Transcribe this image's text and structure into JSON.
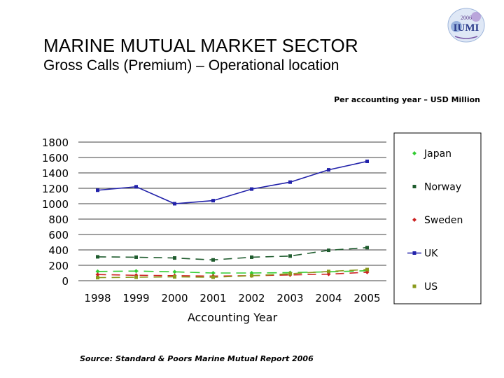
{
  "slide": {
    "title": "MARINE MUTUAL MARKET SECTOR",
    "subtitle": "Gross Calls (Premium) – Operational location",
    "note": "Per accounting year – USD Million",
    "source": "Source: Standard & Poors Marine Mutual Report 2006"
  },
  "logo": {
    "year": "2006",
    "text": "IUMI"
  },
  "chart_data": {
    "type": "line",
    "title": "",
    "xlabel": "Accounting Year",
    "ylabel": "",
    "ylim": [
      0,
      1800
    ],
    "yticks": [
      "0",
      "200",
      "400",
      "600",
      "800",
      "1000",
      "1200",
      "1400",
      "1600",
      "1800"
    ],
    "categories": [
      "1998",
      "1999",
      "2000",
      "2001",
      "2002",
      "2003",
      "2004",
      "2005"
    ],
    "grid": true,
    "legend": "right",
    "series": [
      {
        "name": "Japan",
        "color": "#33cc33",
        "dash": "14,8",
        "marker": "diamond",
        "values": [
          120,
          125,
          115,
          100,
          100,
          105,
          115,
          130
        ]
      },
      {
        "name": "Norway",
        "color": "#1f5c2e",
        "dash": "12,8",
        "marker": "square",
        "values": [
          310,
          305,
          295,
          270,
          305,
          320,
          395,
          430
        ]
      },
      {
        "name": "Sweden",
        "color": "#cc2222",
        "dash": "12,8",
        "marker": "diamond",
        "values": [
          80,
          70,
          65,
          60,
          65,
          75,
          85,
          110
        ]
      },
      {
        "name": "UK",
        "color": "#2222aa",
        "dash": "none",
        "marker": "square",
        "values": [
          1175,
          1220,
          1000,
          1040,
          1190,
          1280,
          1440,
          1550
        ]
      },
      {
        "name": "US",
        "color": "#8a9a1c",
        "dash": "12,8",
        "marker": "square",
        "values": [
          40,
          45,
          50,
          45,
          65,
          90,
          120,
          145
        ]
      }
    ]
  }
}
